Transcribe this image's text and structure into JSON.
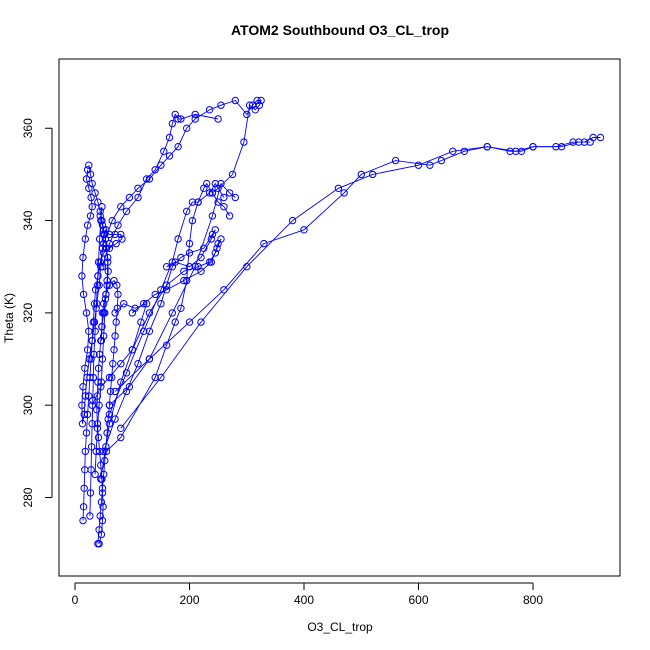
{
  "chart_data": {
    "type": "scatter",
    "title": "ATOM2 Southbound O3_CL_trop",
    "xlabel": "O3_CL_trop",
    "ylabel": "Theta (K)",
    "xlim": [
      -28,
      952
    ],
    "ylim": [
      263,
      375
    ],
    "x_ticks": [
      0,
      200,
      400,
      600,
      800
    ],
    "y_ticks": [
      280,
      300,
      320,
      340,
      360
    ],
    "grid": false,
    "legend": "none",
    "marker": "open-circle",
    "connect_points": true,
    "color": "#0000ff",
    "series": [
      {
        "points": [
          [
            22,
            351
          ],
          [
            20,
            349
          ],
          [
            24,
            347
          ],
          [
            28,
            345
          ],
          [
            30,
            343
          ],
          [
            27,
            341
          ],
          [
            22,
            339
          ],
          [
            18,
            336
          ],
          [
            14,
            332
          ],
          [
            12,
            328
          ],
          [
            15,
            324
          ],
          [
            20,
            320
          ],
          [
            24,
            316
          ],
          [
            22,
            312
          ],
          [
            17,
            308
          ],
          [
            14,
            304
          ],
          [
            12,
            300
          ],
          [
            13,
            296
          ],
          [
            16,
            298
          ],
          [
            18,
            302
          ],
          [
            21,
            306
          ],
          [
            25,
            310
          ],
          [
            30,
            314
          ],
          [
            34,
            318
          ],
          [
            38,
            322
          ],
          [
            42,
            326
          ],
          [
            45,
            330
          ],
          [
            48,
            334
          ],
          [
            50,
            337
          ],
          [
            54,
            338
          ],
          [
            60,
            337
          ],
          [
            70,
            337
          ],
          [
            80,
            337
          ],
          [
            82,
            336
          ],
          [
            72,
            335
          ],
          [
            60,
            334
          ],
          [
            50,
            333
          ],
          [
            44,
            331
          ],
          [
            40,
            328
          ],
          [
            36,
            325
          ],
          [
            34,
            322
          ],
          [
            32,
            318
          ],
          [
            30,
            314
          ],
          [
            28,
            310
          ],
          [
            26,
            306
          ],
          [
            24,
            302
          ],
          [
            22,
            298
          ],
          [
            20,
            294
          ],
          [
            18,
            290
          ],
          [
            17,
            286
          ],
          [
            16,
            282
          ],
          [
            15,
            278
          ],
          [
            14,
            275
          ]
        ]
      },
      {
        "points": [
          [
            24,
            352
          ],
          [
            27,
            350
          ],
          [
            30,
            348
          ],
          [
            35,
            346
          ],
          [
            40,
            344
          ],
          [
            44,
            342
          ],
          [
            47,
            340
          ],
          [
            50,
            338
          ],
          [
            53,
            336
          ],
          [
            55,
            334
          ],
          [
            57,
            332
          ],
          [
            58,
            329
          ],
          [
            56,
            326
          ],
          [
            53,
            323
          ],
          [
            50,
            320
          ],
          [
            47,
            317
          ],
          [
            45,
            314
          ],
          [
            43,
            311
          ],
          [
            41,
            308
          ],
          [
            40,
            305
          ],
          [
            39,
            302
          ],
          [
            38,
            299
          ],
          [
            39,
            296
          ],
          [
            41,
            293
          ],
          [
            43,
            290
          ],
          [
            45,
            287
          ],
          [
            47,
            284
          ],
          [
            48,
            281
          ],
          [
            49,
            278
          ],
          [
            48,
            275
          ],
          [
            46,
            272
          ],
          [
            42,
            270
          ]
        ]
      },
      {
        "points": [
          [
            40,
            270
          ],
          [
            42,
            273
          ],
          [
            44,
            276
          ],
          [
            46,
            279
          ],
          [
            48,
            282
          ],
          [
            50,
            285
          ],
          [
            52,
            288
          ],
          [
            54,
            291
          ],
          [
            56,
            294
          ],
          [
            58,
            297
          ],
          [
            60,
            300
          ],
          [
            62,
            303
          ],
          [
            64,
            306
          ],
          [
            66,
            309
          ],
          [
            68,
            312
          ],
          [
            70,
            315
          ],
          [
            72,
            318
          ],
          [
            74,
            321
          ],
          [
            75,
            324
          ],
          [
            73,
            326
          ],
          [
            68,
            327
          ],
          [
            60,
            326
          ],
          [
            54,
            324
          ],
          [
            50,
            322
          ],
          [
            48,
            320
          ],
          [
            47,
            317
          ],
          [
            46,
            314
          ]
        ]
      },
      {
        "points": [
          [
            45,
            284
          ],
          [
            60,
            296
          ],
          [
            80,
            305
          ],
          [
            100,
            312
          ],
          [
            130,
            320
          ],
          [
            160,
            326
          ],
          [
            190,
            329
          ],
          [
            215,
            330
          ],
          [
            235,
            331
          ],
          [
            245,
            333
          ],
          [
            250,
            335
          ],
          [
            255,
            336
          ],
          [
            248,
            334
          ],
          [
            238,
            331
          ],
          [
            220,
            329
          ],
          [
            190,
            327
          ],
          [
            160,
            325
          ],
          [
            140,
            324
          ],
          [
            120,
            322
          ],
          [
            100,
            320
          ]
        ]
      },
      {
        "points": [
          [
            50,
            290
          ],
          [
            70,
            297
          ],
          [
            90,
            303
          ],
          [
            110,
            309
          ],
          [
            130,
            316
          ],
          [
            150,
            322
          ],
          [
            170,
            330
          ],
          [
            185,
            332
          ],
          [
            200,
            333
          ],
          [
            225,
            334
          ],
          [
            240,
            337
          ],
          [
            245,
            338
          ],
          [
            238,
            336
          ],
          [
            220,
            332
          ],
          [
            200,
            330
          ],
          [
            175,
            331
          ],
          [
            160,
            330
          ]
        ]
      },
      {
        "points": [
          [
            30,
            300
          ],
          [
            45,
            304
          ],
          [
            60,
            306
          ],
          [
            80,
            309
          ],
          [
            100,
            312
          ],
          [
            115,
            318
          ],
          [
            125,
            322
          ],
          [
            105,
            321
          ],
          [
            85,
            322
          ],
          [
            70,
            320
          ]
        ]
      },
      {
        "points": [
          [
            55,
            290
          ],
          [
            80,
            293
          ],
          [
            140,
            306
          ],
          [
            160,
            313
          ],
          [
            175,
            318
          ],
          [
            185,
            321
          ],
          [
            195,
            327
          ],
          [
            200,
            335
          ],
          [
            205,
            340
          ],
          [
            215,
            344
          ],
          [
            225,
            347
          ],
          [
            230,
            348
          ],
          [
            240,
            346
          ],
          [
            250,
            344
          ],
          [
            260,
            343
          ],
          [
            270,
            341
          ]
        ]
      },
      {
        "points": [
          [
            60,
            298
          ],
          [
            90,
            307
          ],
          [
            120,
            316
          ],
          [
            150,
            325
          ],
          [
            170,
            331
          ],
          [
            180,
            336
          ],
          [
            195,
            342
          ],
          [
            205,
            344
          ],
          [
            215,
            344
          ],
          [
            235,
            346
          ],
          [
            245,
            348
          ],
          [
            260,
            345
          ]
        ]
      },
      {
        "points": [
          [
            60,
            300
          ],
          [
            95,
            304
          ],
          [
            130,
            310
          ],
          [
            170,
            320
          ],
          [
            210,
            330
          ],
          [
            240,
            341
          ],
          [
            255,
            348
          ],
          [
            270,
            346
          ],
          [
            280,
            345
          ]
        ]
      },
      {
        "points": [
          [
            40,
            328
          ],
          [
            50,
            335
          ],
          [
            65,
            340
          ],
          [
            80,
            343
          ],
          [
            95,
            345
          ],
          [
            110,
            347
          ],
          [
            130,
            349
          ],
          [
            150,
            352
          ],
          [
            165,
            354
          ],
          [
            180,
            356
          ],
          [
            195,
            360
          ],
          [
            210,
            362
          ],
          [
            235,
            364
          ],
          [
            255,
            365
          ],
          [
            280,
            366
          ],
          [
            300,
            363
          ],
          [
            310,
            365
          ],
          [
            318,
            366
          ],
          [
            325,
            366
          ],
          [
            322,
            365
          ],
          [
            315,
            364
          ],
          [
            305,
            365
          ],
          [
            295,
            357
          ],
          [
            275,
            350
          ],
          [
            250,
            347
          ],
          [
            240,
            346
          ]
        ]
      },
      {
        "points": [
          [
            48,
            330
          ],
          [
            60,
            335
          ],
          [
            75,
            339
          ],
          [
            90,
            342
          ],
          [
            110,
            345
          ],
          [
            125,
            349
          ],
          [
            140,
            351
          ],
          [
            155,
            355
          ],
          [
            165,
            358
          ],
          [
            170,
            361
          ],
          [
            175,
            363
          ],
          [
            180,
            362
          ],
          [
            185,
            362
          ],
          [
            210,
            363
          ],
          [
            250,
            362
          ]
        ]
      },
      {
        "points": [
          [
            70,
            303
          ],
          [
            130,
            310
          ],
          [
            200,
            318
          ],
          [
            260,
            325
          ],
          [
            330,
            335
          ],
          [
            400,
            338
          ],
          [
            470,
            346
          ],
          [
            500,
            350
          ],
          [
            560,
            353
          ],
          [
            620,
            352
          ],
          [
            640,
            353
          ],
          [
            680,
            355
          ],
          [
            720,
            356
          ],
          [
            760,
            355
          ],
          [
            780,
            355
          ],
          [
            800,
            356
          ],
          [
            840,
            356
          ],
          [
            870,
            357
          ],
          [
            890,
            357
          ],
          [
            905,
            358
          ],
          [
            918,
            358
          ]
        ]
      },
      {
        "points": [
          [
            80,
            295
          ],
          [
            150,
            306
          ],
          [
            220,
            318
          ],
          [
            300,
            330
          ],
          [
            380,
            340
          ],
          [
            460,
            347
          ],
          [
            520,
            350
          ],
          [
            600,
            352
          ],
          [
            660,
            355
          ],
          [
            720,
            356
          ],
          [
            770,
            355
          ],
          [
            800,
            356
          ],
          [
            850,
            356
          ],
          [
            880,
            357
          ],
          [
            900,
            357
          ]
        ]
      },
      {
        "points": [
          [
            35,
            285
          ],
          [
            37,
            290
          ],
          [
            39,
            295
          ],
          [
            42,
            300
          ],
          [
            46,
            305
          ],
          [
            48,
            310
          ],
          [
            50,
            315
          ],
          [
            52,
            320
          ],
          [
            54,
            324
          ],
          [
            56,
            327
          ],
          [
            57,
            331
          ],
          [
            55,
            334
          ],
          [
            52,
            337
          ],
          [
            48,
            339
          ],
          [
            44,
            341
          ]
        ]
      },
      {
        "points": [
          [
            26,
            276
          ],
          [
            27,
            281
          ],
          [
            28,
            286
          ],
          [
            29,
            291
          ],
          [
            30,
            296
          ],
          [
            31,
            301
          ],
          [
            32,
            306
          ],
          [
            33,
            311
          ],
          [
            35,
            316
          ],
          [
            37,
            321
          ],
          [
            39,
            326
          ],
          [
            41,
            331
          ],
          [
            43,
            336
          ],
          [
            45,
            340
          ],
          [
            47,
            343
          ]
        ]
      }
    ]
  }
}
